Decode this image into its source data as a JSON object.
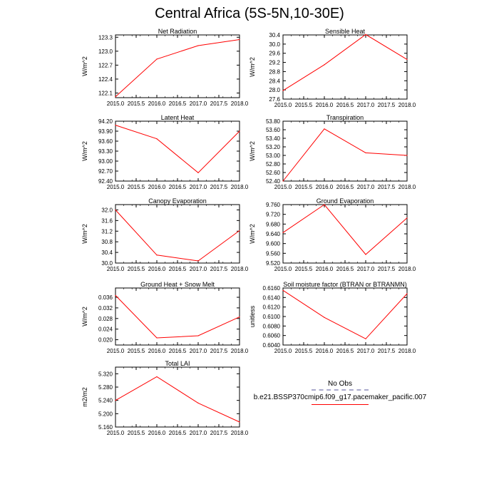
{
  "page": {
    "title": "Central Africa (5S-5N,10-30E)"
  },
  "legend": {
    "obs_label": "No Obs",
    "obs_color": "#aaaacc",
    "model_label": "b.e21.BSSP370cmip6.f09_g17.pacemaker_pacific.007",
    "model_color": "#ff0000"
  },
  "chart_data": [
    {
      "type": "line",
      "title": "Net Radiation",
      "ylabel": "W/m^2",
      "x": [
        2015.0,
        2016.0,
        2017.0,
        2018.0
      ],
      "values": [
        122.02,
        122.83,
        123.12,
        123.25
      ],
      "xlim": [
        2015.0,
        2018.0
      ],
      "ylim": [
        122.0,
        123.35
      ],
      "xticks": [
        2015.0,
        2015.5,
        2016.0,
        2016.5,
        2017.0,
        2017.5,
        2018.0
      ],
      "xtick_labels": [
        "2015.0",
        "2015.5",
        "2016.0",
        "2016.5",
        "2017.0",
        "2017.5",
        "2018.0"
      ],
      "yticks": [
        122.1,
        122.4,
        122.7,
        123.0,
        123.3
      ],
      "ytick_labels": [
        "122.1",
        "122.4",
        "122.7",
        "123.0",
        "123.3"
      ]
    },
    {
      "type": "line",
      "title": "Sensible Heat",
      "ylabel": "W/m^2",
      "x": [
        2015.0,
        2016.0,
        2017.0,
        2018.0
      ],
      "values": [
        27.97,
        29.1,
        30.42,
        29.33
      ],
      "xlim": [
        2015.0,
        2018.0
      ],
      "ylim": [
        27.6,
        30.4
      ],
      "xticks": [
        2015.0,
        2015.5,
        2016.0,
        2016.5,
        2017.0,
        2017.5,
        2018.0
      ],
      "xtick_labels": [
        "2015.0",
        "2015.5",
        "2016.0",
        "2016.5",
        "2017.0",
        "2017.5",
        "2018.0"
      ],
      "yticks": [
        27.6,
        28.0,
        28.4,
        28.8,
        29.2,
        29.6,
        30.0,
        30.4
      ],
      "ytick_labels": [
        "27.6",
        "28.0",
        "28.4",
        "28.8",
        "29.2",
        "29.6",
        "30.0",
        "30.4"
      ]
    },
    {
      "type": "line",
      "title": "Latent Heat",
      "ylabel": "W/m^2",
      "x": [
        2015.0,
        2016.0,
        2017.0,
        2018.0
      ],
      "values": [
        94.08,
        93.67,
        92.65,
        93.9
      ],
      "xlim": [
        2015.0,
        2018.0
      ],
      "ylim": [
        92.4,
        94.2
      ],
      "xticks": [
        2015.0,
        2015.5,
        2016.0,
        2016.5,
        2017.0,
        2017.5,
        2018.0
      ],
      "xtick_labels": [
        "2015.0",
        "2015.5",
        "2016.0",
        "2016.5",
        "2017.0",
        "2017.5",
        "2018.0"
      ],
      "yticks": [
        92.4,
        92.7,
        93.0,
        93.3,
        93.6,
        93.9,
        94.2
      ],
      "ytick_labels": [
        "92.40",
        "92.70",
        "93.00",
        "93.30",
        "93.60",
        "93.90",
        "94.20"
      ]
    },
    {
      "type": "line",
      "title": "Transpiration",
      "ylabel": "W/m^2",
      "x": [
        2015.0,
        2016.0,
        2017.0,
        2018.0
      ],
      "values": [
        52.4,
        53.62,
        53.06,
        53.0
      ],
      "xlim": [
        2015.0,
        2018.0
      ],
      "ylim": [
        52.4,
        53.8
      ],
      "xticks": [
        2015.0,
        2015.5,
        2016.0,
        2016.5,
        2017.0,
        2017.5,
        2018.0
      ],
      "xtick_labels": [
        "2015.0",
        "2015.5",
        "2016.0",
        "2016.5",
        "2017.0",
        "2017.5",
        "2018.0"
      ],
      "yticks": [
        52.4,
        52.6,
        52.8,
        53.0,
        53.2,
        53.4,
        53.6,
        53.8
      ],
      "ytick_labels": [
        "52.40",
        "52.60",
        "52.80",
        "53.00",
        "53.20",
        "53.40",
        "53.60",
        "53.80"
      ]
    },
    {
      "type": "line",
      "title": "Canopy Evaporation",
      "ylabel": "W/m^2",
      "x": [
        2015.0,
        2016.0,
        2017.0,
        2018.0
      ],
      "values": [
        32.0,
        30.3,
        30.08,
        31.22
      ],
      "xlim": [
        2015.0,
        2018.0
      ],
      "ylim": [
        30.0,
        32.2
      ],
      "xticks": [
        2015.0,
        2015.5,
        2016.0,
        2016.5,
        2017.0,
        2017.5,
        2018.0
      ],
      "xtick_labels": [
        "2015.0",
        "2015.5",
        "2016.0",
        "2016.5",
        "2017.0",
        "2017.5",
        "2018.0"
      ],
      "yticks": [
        30.0,
        30.4,
        30.8,
        31.2,
        31.6,
        32.0
      ],
      "ytick_labels": [
        "30.0",
        "30.4",
        "30.8",
        "31.2",
        "31.6",
        "32.0"
      ]
    },
    {
      "type": "line",
      "title": "Ground Evaporation",
      "ylabel": "W/m^2",
      "x": [
        2015.0,
        2016.0,
        2017.0,
        2018.0
      ],
      "values": [
        9.645,
        9.76,
        9.555,
        9.705
      ],
      "xlim": [
        2015.0,
        2018.0
      ],
      "ylim": [
        9.52,
        9.76
      ],
      "xticks": [
        2015.0,
        2015.5,
        2016.0,
        2016.5,
        2017.0,
        2017.5,
        2018.0
      ],
      "xtick_labels": [
        "2015.0",
        "2015.5",
        "2016.0",
        "2016.5",
        "2017.0",
        "2017.5",
        "2018.0"
      ],
      "yticks": [
        9.52,
        9.56,
        9.6,
        9.64,
        9.68,
        9.72,
        9.76
      ],
      "ytick_labels": [
        "9.520",
        "9.560",
        "9.600",
        "9.640",
        "9.680",
        "9.720",
        "9.760"
      ]
    },
    {
      "type": "line",
      "title": "Ground Heat + Snow Melt",
      "ylabel": "W/m^2",
      "x": [
        2015.0,
        2016.0,
        2017.0,
        2018.0
      ],
      "values": [
        0.0367,
        0.0207,
        0.0215,
        0.0286
      ],
      "xlim": [
        2015.0,
        2018.0
      ],
      "ylim": [
        0.018,
        0.0395
      ],
      "xticks": [
        2015.0,
        2015.5,
        2016.0,
        2016.5,
        2017.0,
        2017.5,
        2018.0
      ],
      "xtick_labels": [
        "2015.0",
        "2015.5",
        "2016.0",
        "2016.5",
        "2017.0",
        "2017.5",
        "2018.0"
      ],
      "yticks": [
        0.02,
        0.024,
        0.028,
        0.032,
        0.036
      ],
      "ytick_labels": [
        "0.020",
        "0.024",
        "0.028",
        "0.032",
        "0.036"
      ]
    },
    {
      "type": "line",
      "title": "Soil moisture factor (BTRAN or BTRANMN)",
      "ylabel": "unitless",
      "x": [
        2015.0,
        2016.0,
        2017.0,
        2018.0
      ],
      "values": [
        0.6155,
        0.6098,
        0.6053,
        0.6148
      ],
      "xlim": [
        2015.0,
        2018.0
      ],
      "ylim": [
        0.604,
        0.616
      ],
      "xticks": [
        2015.0,
        2015.5,
        2016.0,
        2016.5,
        2017.0,
        2017.5,
        2018.0
      ],
      "xtick_labels": [
        "2015.0",
        "2015.5",
        "2016.0",
        "2016.5",
        "2017.0",
        "2017.5",
        "2018.0"
      ],
      "yticks": [
        0.604,
        0.606,
        0.608,
        0.61,
        0.612,
        0.614,
        0.616
      ],
      "ytick_labels": [
        "0.6040",
        "0.6060",
        "0.6080",
        "0.6100",
        "0.6120",
        "0.6140",
        "0.6160"
      ]
    },
    {
      "type": "line",
      "title": "Total LAI",
      "ylabel": "m2/m2",
      "x": [
        2015.0,
        2016.0,
        2017.0,
        2018.0
      ],
      "values": [
        5.24,
        5.311,
        5.232,
        5.175
      ],
      "xlim": [
        2015.0,
        2018.0
      ],
      "ylim": [
        5.16,
        5.34
      ],
      "xticks": [
        2015.0,
        2015.5,
        2016.0,
        2016.5,
        2017.0,
        2017.5,
        2018.0
      ],
      "xtick_labels": [
        "2015.0",
        "2015.5",
        "2016.0",
        "2016.5",
        "2017.0",
        "2017.5",
        "2018.0"
      ],
      "yticks": [
        5.16,
        5.2,
        5.24,
        5.28,
        5.32
      ],
      "ytick_labels": [
        "5.160",
        "5.200",
        "5.240",
        "5.280",
        "5.320"
      ]
    }
  ]
}
